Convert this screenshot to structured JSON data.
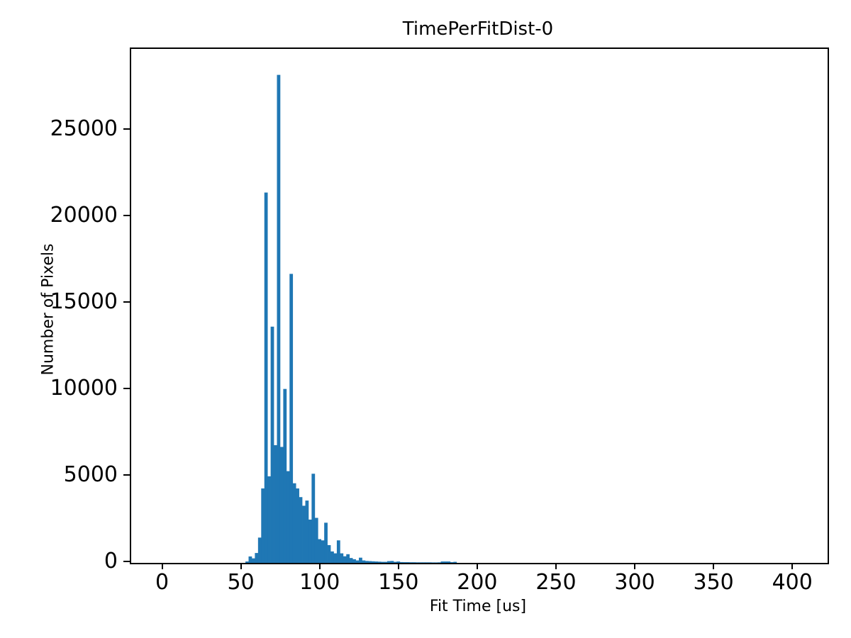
{
  "chart_data": {
    "type": "bar",
    "subtype": "histogram",
    "title": "TimePerFitDist-0",
    "xlabel": "Fit Time [us]",
    "ylabel": "Number of Pixels",
    "bar_color": "#1f77b4",
    "axis_color": "#000000",
    "background_color": "#ffffff",
    "grid": false,
    "legend": false,
    "xlim": [
      -20.5,
      421.5
    ],
    "ylim": [
      0,
      29700
    ],
    "xticks": [
      0,
      50,
      100,
      150,
      200,
      250,
      300,
      350,
      400
    ],
    "yticks": [
      0,
      5000,
      10000,
      15000,
      20000,
      25000
    ],
    "bin_width": 2,
    "bins": [
      [
        52,
        80
      ],
      [
        54,
        370
      ],
      [
        56,
        260
      ],
      [
        58,
        570
      ],
      [
        60,
        1460
      ],
      [
        62,
        4300
      ],
      [
        64,
        21400
      ],
      [
        66,
        5000
      ],
      [
        68,
        13650
      ],
      [
        70,
        6800
      ],
      [
        72,
        28200
      ],
      [
        74,
        6700
      ],
      [
        76,
        10050
      ],
      [
        78,
        5300
      ],
      [
        80,
        16700
      ],
      [
        82,
        4600
      ],
      [
        84,
        4300
      ],
      [
        86,
        3800
      ],
      [
        88,
        3300
      ],
      [
        90,
        3600
      ],
      [
        92,
        2500
      ],
      [
        94,
        5150
      ],
      [
        96,
        2600
      ],
      [
        98,
        1370
      ],
      [
        100,
        1300
      ],
      [
        102,
        2320
      ],
      [
        104,
        1025
      ],
      [
        106,
        660
      ],
      [
        108,
        550
      ],
      [
        110,
        1300
      ],
      [
        112,
        550
      ],
      [
        114,
        380
      ],
      [
        116,
        500
      ],
      [
        118,
        280
      ],
      [
        120,
        210
      ],
      [
        122,
        140
      ],
      [
        124,
        300
      ],
      [
        126,
        140
      ],
      [
        128,
        110
      ],
      [
        130,
        100
      ],
      [
        132,
        90
      ],
      [
        134,
        80
      ],
      [
        136,
        70
      ],
      [
        138,
        60
      ],
      [
        140,
        60
      ],
      [
        142,
        100
      ],
      [
        144,
        110
      ],
      [
        146,
        60
      ],
      [
        148,
        80
      ],
      [
        150,
        45
      ],
      [
        152,
        40
      ],
      [
        154,
        40
      ],
      [
        156,
        35
      ],
      [
        158,
        35
      ],
      [
        160,
        30
      ],
      [
        162,
        30
      ],
      [
        164,
        30
      ],
      [
        166,
        30
      ],
      [
        168,
        30
      ],
      [
        170,
        25
      ],
      [
        172,
        25
      ],
      [
        174,
        30
      ],
      [
        176,
        80
      ],
      [
        178,
        80
      ],
      [
        180,
        80
      ],
      [
        182,
        40
      ],
      [
        184,
        60
      ]
    ]
  }
}
